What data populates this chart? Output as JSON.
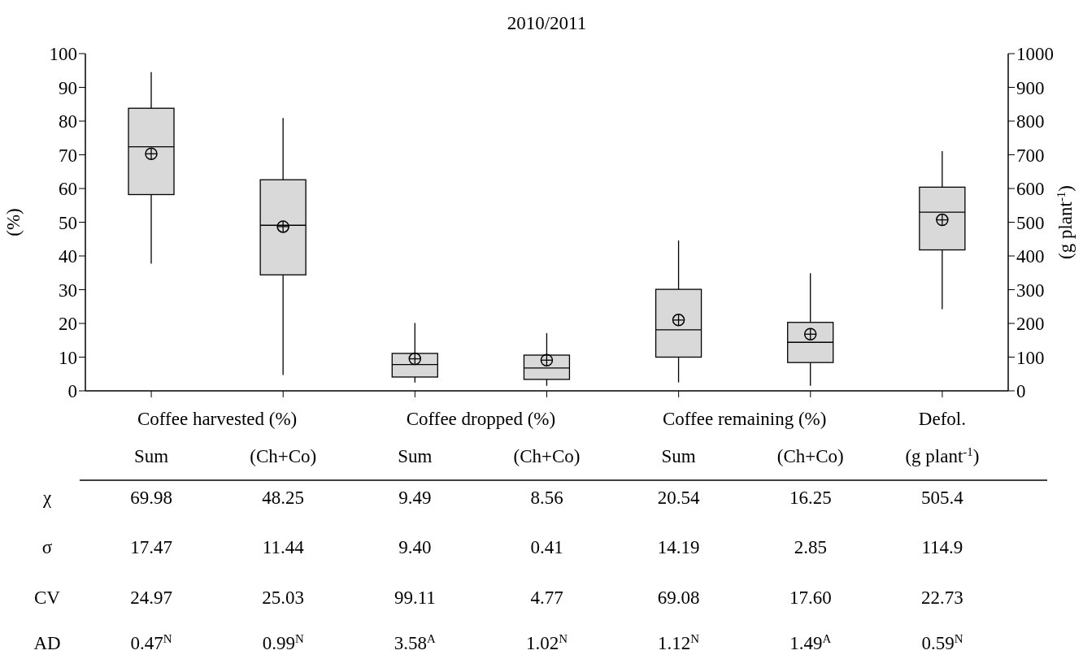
{
  "chart_data": {
    "type": "box",
    "title": "2010/2011",
    "ylabel": "(%)",
    "y2label": "(g plant$^{-1}$)",
    "categories": [
      "Sum",
      "(Ch+Co)",
      "Sum",
      "(Ch+Co)",
      "Sum",
      "(Ch+Co)",
      "(g plant$^{-1}$)"
    ],
    "series": [
      {
        "color": "#d9d9d9",
        "boxes": [
          {
            "low": 37.7,
            "q1": 58.2,
            "median": 72.4,
            "q3": 83.8,
            "high": 94.5,
            "mean": 70.3
          },
          {
            "low": 4.7,
            "q1": 34.4,
            "median": 49.1,
            "q3": 62.6,
            "high": 80.9,
            "mean": 48.7
          },
          {
            "low": 2.5,
            "q1": 4.1,
            "median": 7.8,
            "q3": 11.1,
            "high": 20.1,
            "mean": 9.5
          },
          {
            "low": 1.5,
            "q1": 3.4,
            "median": 6.8,
            "q3": 10.6,
            "high": 17.1,
            "mean": 9.1
          },
          {
            "low": 2.5,
            "q1": 10.0,
            "median": 18.1,
            "q3": 30.1,
            "high": 44.6,
            "mean": 21.0
          },
          {
            "low": 1.5,
            "q1": 8.4,
            "median": 14.4,
            "q3": 20.3,
            "high": 34.9,
            "mean": 16.8
          },
          null
        ]
      },
      {
        "color": "#d9d9d9",
        "axis": "y2",
        "boxes": [
          null,
          null,
          null,
          null,
          null,
          null,
          {
            "low": 242,
            "q1": 418,
            "median": 530,
            "q3": 604,
            "high": 711,
            "mean": 507
          }
        ]
      }
    ],
    "ylim": [
      0,
      100
    ],
    "yticks": [
      0,
      10,
      20,
      30,
      40,
      50,
      60,
      70,
      80,
      90,
      100
    ],
    "y2lim": [
      0,
      1000
    ],
    "y2ticks": [
      0,
      100,
      200,
      300,
      400,
      500,
      600,
      700,
      800,
      900,
      1000
    ],
    "grid": false,
    "legend": false,
    "annotations": [
      "Coffee harvested (%)",
      "Coffee dropped (%)",
      "Coffee remaining (%)",
      "Defol.",
      "χ",
      "69.98",
      "48.25",
      "9.49",
      "8.56",
      "20.54",
      "16.25",
      "505.4",
      "σ",
      "17.47",
      "11.44",
      "9.40",
      "0.41",
      "14.19",
      "2.85",
      "114.9",
      "CV",
      "24.97",
      "25.03",
      "99.11",
      "4.77",
      "69.08",
      "17.60",
      "22.73",
      "AD",
      "0.47$^{N}$",
      "0.99$^{N}$",
      "3.58$^{A}$",
      "1.02$^{N}$",
      "1.12$^{N}$",
      "1.49$^{A}$",
      "0.59$^{N}$"
    ]
  }
}
